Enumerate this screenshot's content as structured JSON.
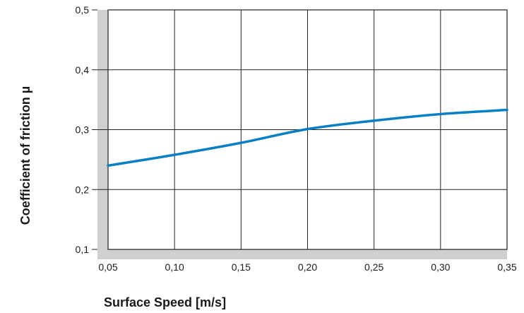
{
  "chart_data": {
    "type": "line",
    "title": "",
    "xlabel": "Surface Speed [m/s]",
    "ylabel": "Coefficient of friction µ",
    "xlim": [
      0.05,
      0.35
    ],
    "ylim": [
      0.1,
      0.5
    ],
    "x_ticks": [
      "0,05",
      "0,10",
      "0,15",
      "0,20",
      "0,25",
      "0,30",
      "0,35"
    ],
    "y_ticks": [
      "0,1",
      "0,2",
      "0,3",
      "0,4",
      "0,5"
    ],
    "grid": true,
    "series": [
      {
        "x": [
          0.05,
          0.1,
          0.15,
          0.2,
          0.25,
          0.3,
          0.35
        ],
        "y": [
          0.24,
          0.258,
          0.278,
          0.301,
          0.315,
          0.326,
          0.333
        ]
      }
    ],
    "colors": {
      "line": "#0a7fc4",
      "grid": "#222222",
      "axis_band": "#d0d0d0"
    }
  }
}
